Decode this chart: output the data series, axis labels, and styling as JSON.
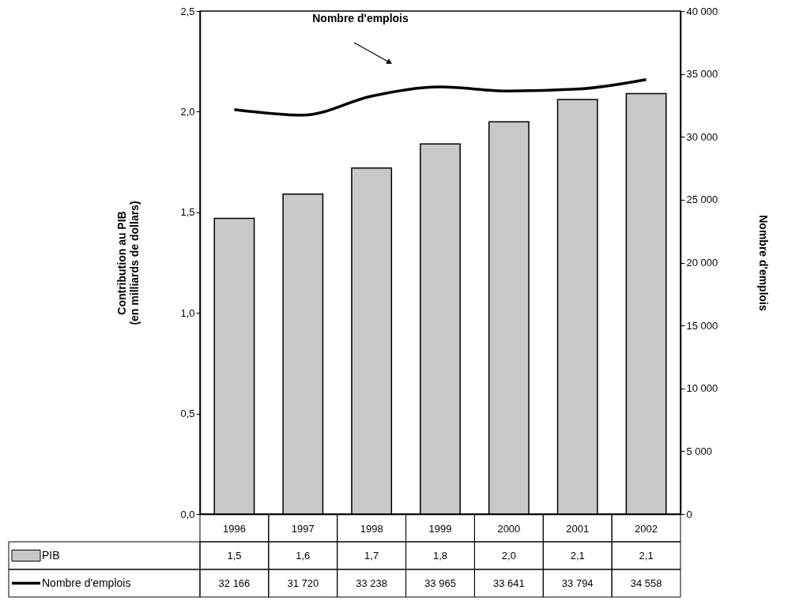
{
  "chart_data": {
    "type": "bar",
    "categories": [
      "1996",
      "1997",
      "1998",
      "1999",
      "2000",
      "2001",
      "2002"
    ],
    "series": [
      {
        "name": "PIB",
        "color": "#c8c8c8",
        "values": [
          1.47,
          1.59,
          1.72,
          1.84,
          1.95,
          2.06,
          2.09
        ],
        "value_labels": [
          "1,5",
          "1,6",
          "1,7",
          "1,8",
          "2,0",
          "2,1",
          "2,1"
        ]
      },
      {
        "name": "Nombre d'emplois",
        "type": "line",
        "axis": "y2",
        "color": "#000000",
        "values": [
          32166,
          31720,
          33238,
          33965,
          33641,
          33794,
          34558
        ],
        "value_labels": [
          "32 166",
          "31 720",
          "33 238",
          "33 965",
          "33 641",
          "33 794",
          "34 558"
        ]
      }
    ],
    "ylabel": "Contribution au PIB\n(en milliards de dollars)",
    "y2label": "Nombre d'emplois",
    "ylim": [
      0,
      2.5
    ],
    "yticks": [
      {
        "value": 0,
        "label": "0,0"
      },
      {
        "value": 0.5,
        "label": "0,5"
      },
      {
        "value": 1,
        "label": "1,0"
      },
      {
        "value": 1.5,
        "label": "1,5"
      },
      {
        "value": 2,
        "label": "2,0"
      },
      {
        "value": 2.5,
        "label": "2,5"
      }
    ],
    "y2lim": [
      0,
      40000
    ],
    "y2ticks": [
      0,
      {
        "value": 5000,
        "label": "5 000"
      },
      {
        "value": 10000,
        "label": "10 000"
      },
      {
        "value": 15000,
        "label": "15 000"
      },
      {
        "value": 20000,
        "label": "20 000"
      },
      {
        "value": 25000,
        "label": "25 000"
      },
      {
        "value": 30000,
        "label": "30 000"
      },
      {
        "value": 35000,
        "label": "35 000"
      },
      {
        "value": 40000,
        "label": "40 000"
      }
    ],
    "annotations": [
      "Nombre d'emplois"
    ],
    "grid": false,
    "legend": "bottom left"
  }
}
